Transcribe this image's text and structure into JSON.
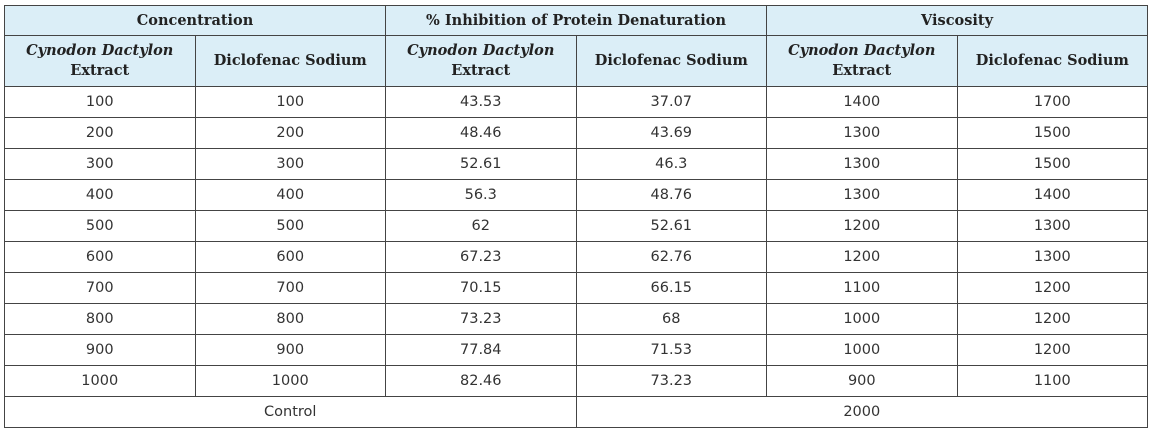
{
  "table": {
    "group_headers": {
      "concentration": "Concentration",
      "inhibition": "% Inhibition of Protein Denaturation",
      "viscosity": "Viscosity"
    },
    "sub_headers": {
      "extract_line1": "Cynodon Dactylon",
      "extract_line2": "Extract",
      "drug": "Diclofenac Sodium"
    },
    "rows": [
      [
        "100",
        "100",
        "43.53",
        "37.07",
        "1400",
        "1700"
      ],
      [
        "200",
        "200",
        "48.46",
        "43.69",
        "1300",
        "1500"
      ],
      [
        "300",
        "300",
        "52.61",
        "46.3",
        "1300",
        "1500"
      ],
      [
        "400",
        "400",
        "56.3",
        "48.76",
        "1300",
        "1400"
      ],
      [
        "500",
        "500",
        "62",
        "52.61",
        "1200",
        "1300"
      ],
      [
        "600",
        "600",
        "67.23",
        "62.76",
        "1200",
        "1300"
      ],
      [
        "700",
        "700",
        "70.15",
        "66.15",
        "1100",
        "1200"
      ],
      [
        "800",
        "800",
        "73.23",
        "68",
        "1000",
        "1200"
      ],
      [
        "900",
        "900",
        "77.84",
        "71.53",
        "1000",
        "1200"
      ],
      [
        "1000",
        "1000",
        "82.46",
        "73.23",
        "900",
        "1100"
      ]
    ],
    "control": {
      "label": "Control",
      "value": "2000"
    }
  },
  "colors": {
    "header_background": "#dbeef7",
    "border": "#444444"
  }
}
